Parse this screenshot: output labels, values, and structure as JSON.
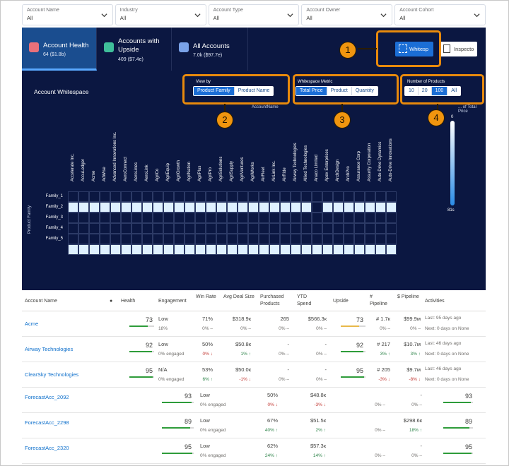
{
  "filters": [
    {
      "label": "Account Name",
      "value": "All"
    },
    {
      "label": "Industry",
      "value": "All"
    },
    {
      "label": "Account Type",
      "value": "All"
    },
    {
      "label": "Account Owner",
      "value": "All"
    },
    {
      "label": "Account Cohort",
      "value": "All"
    }
  ],
  "tabs": [
    {
      "title": "Account Health",
      "sub": "64 ($1.8b)",
      "icon": "health-icon",
      "color": "#e8707a"
    },
    {
      "title": "Accounts with Upside",
      "sub": "409 ($7.4e)",
      "icon": "upside-icon",
      "color": "#3fbf9a"
    },
    {
      "title": "All Accounts",
      "sub": "7.0k ($97.7e)",
      "icon": "accounts-icon",
      "color": "#7aa2e8"
    }
  ],
  "buttons": {
    "whitespace": "Whitesp",
    "inspector": "Inspecto"
  },
  "whitespace_title": "Account Whitespace",
  "view_by": {
    "label": "View by",
    "options": [
      "Product Family",
      "Product Name"
    ],
    "selected": 0
  },
  "metric": {
    "label": "Whitespace Metric",
    "options": [
      "Total Price",
      "Product",
      "Quantity"
    ],
    "selected": 0
  },
  "num_products": {
    "label": "Number of Products",
    "options": [
      "10",
      "20",
      "100",
      "All"
    ],
    "selected": 2
  },
  "axis_title": "AccountName",
  "legend": {
    "title": "... of Total Price",
    "min_label": "0",
    "max_label": "81s"
  },
  "y_axis_label": "Product Family",
  "callouts": [
    "1",
    "2",
    "3",
    "4"
  ],
  "chart_data": {
    "type": "heatmap",
    "columns": [
      "Accelerate Inc.",
      "AccuLedger",
      "Acme",
      "AdWise",
      "Advanced Innovations Inc.",
      "AeroConnect",
      "AeroLines",
      "AeroLink",
      "AgriCo",
      "AgriEquip",
      "AgriGrowth",
      "AgriNation",
      "AgriPlus",
      "AgriPro",
      "AgriSolutions",
      "AgriSupply",
      "AgriVentures",
      "AgriWorks",
      "AirFleet",
      "AirLink Inc.",
      "AirRide",
      "Airway Technologies",
      "Allied Technologies",
      "Anaco Limited",
      "Apex Enterprises",
      "ArchDesign",
      "ArchPro",
      "Assurance Corp",
      "Assurity Corporation",
      "Auto-Drive Dynamics",
      "Auto-Drive Innovations"
    ],
    "rows": [
      "Family_1",
      "Family_2",
      "Family_3",
      "Family_4",
      "Family_5",
      ""
    ],
    "filled": [
      [
        0,
        0,
        0,
        0,
        0,
        0,
        0,
        0,
        0,
        0,
        0,
        0,
        0,
        0,
        0,
        0,
        0,
        0,
        0,
        0,
        0,
        0,
        0,
        0,
        0,
        0,
        0,
        0,
        0,
        0,
        0
      ],
      [
        1,
        1,
        1,
        1,
        1,
        1,
        1,
        1,
        1,
        1,
        1,
        1,
        1,
        1,
        1,
        1,
        1,
        1,
        1,
        1,
        1,
        1,
        1,
        0,
        1,
        1,
        1,
        1,
        1,
        1,
        1
      ],
      [
        0,
        0,
        0,
        0,
        0,
        0,
        0,
        0,
        0,
        0,
        0,
        0,
        0,
        0,
        0,
        0,
        0,
        0,
        0,
        0,
        0,
        0,
        0,
        0,
        0,
        0,
        0,
        0,
        0,
        0,
        0
      ],
      [
        0,
        0,
        0,
        0,
        0,
        0,
        0,
        0,
        0,
        0,
        0,
        0,
        0,
        0,
        0,
        0,
        0,
        0,
        0,
        0,
        0,
        0,
        0,
        0,
        0,
        0,
        0,
        0,
        0,
        0,
        0
      ],
      [
        0,
        0,
        0,
        0,
        0,
        0,
        0,
        0,
        0,
        0,
        0,
        0,
        0,
        0,
        0,
        0,
        0,
        0,
        0,
        0,
        0,
        0,
        0,
        0,
        0,
        0,
        0,
        0,
        0,
        0,
        0
      ],
      [
        1,
        1,
        1,
        1,
        1,
        1,
        1,
        1,
        1,
        1,
        1,
        1,
        1,
        1,
        1,
        1,
        1,
        1,
        1,
        1,
        1,
        1,
        1,
        1,
        1,
        1,
        1,
        1,
        1,
        1,
        1
      ]
    ],
    "xlabel": "AccountName",
    "ylabel": "Product Family"
  },
  "table": {
    "headers": [
      "Account Name",
      "●",
      "Health",
      "Engagement",
      "Win Rate",
      "Avg Deal Size",
      "Purchased Products",
      "YTD Spend",
      "Upside",
      "# Pipeline",
      "$ Pipeline",
      "Activities"
    ],
    "rows": [
      {
        "name": "Acme",
        "health": "73",
        "health_pct": 0.73,
        "eng": "Low",
        "eng_sub": "18%",
        "win": "71%",
        "win_sub": "0% –",
        "deal": "$318.9к",
        "deal_sub": "0% –",
        "pp": "265",
        "pp_sub": "0% –",
        "ytd": "$566.3к",
        "ytd_sub": "0% –",
        "upside": "73",
        "upside_pct": 0.73,
        "upside_color": "#e8b84a",
        "npipe": "# 1.7к",
        "npipe_sub": "0% –",
        "spipe": "$99.9м",
        "spipe_sub": "0% –",
        "act1": "Last: 95 days ago",
        "act2": "Next: 0 days on None"
      },
      {
        "name": "Airway Technologies",
        "health": "92",
        "health_pct": 0.92,
        "eng": "Low",
        "eng_sub": "0% engaged",
        "win": "50%",
        "win_sub": "0% ↓",
        "deal": "$50.8к",
        "deal_sub": "1% ↑",
        "pp": "-",
        "pp_sub": "0% –",
        "ytd": "-",
        "ytd_sub": "0% –",
        "upside": "92",
        "upside_pct": 0.92,
        "upside_color": "#2e9c3a",
        "npipe": "# 217",
        "npipe_sub": "3% ↑",
        "spipe": "$10.7м",
        "spipe_sub": "3% ↑",
        "act1": "Last: 46 days ago",
        "act2": "Next: 0 days on None"
      },
      {
        "name": "ClearSky Technologies",
        "health": "95",
        "health_pct": 0.95,
        "eng": "N/A",
        "eng_sub": "0% engaged",
        "win": "53%",
        "win_sub": "6% ↑",
        "deal": "$50.0к",
        "deal_sub": "-1% ↓",
        "pp": "-",
        "pp_sub": "0% –",
        "ytd": "-",
        "ytd_sub": "0% –",
        "upside": "95",
        "upside_pct": 0.95,
        "upside_color": "#2e9c3a",
        "npipe": "# 205",
        "npipe_sub": "-3% ↓",
        "spipe": "$9.7м",
        "spipe_sub": "-8% ↓",
        "act1": "Last: 46 days ago",
        "act2": "Next: 0 days on None"
      }
    ],
    "rows2": [
      {
        "name": "ForecastAcc_2092",
        "health": "93",
        "health_pct": 0.93,
        "eng": "Low",
        "eng_sub": "0% engaged",
        "pp": "50%",
        "pp_sub": "0% ↓",
        "ytd": "$48.8к",
        "ytd_sub": "-3% ↓",
        "up_sub": "0% –",
        "spipe": "-",
        "spipe_sub": "0% –",
        "act": "93",
        "act_pct": 0.93
      },
      {
        "name": "ForecastAcc_2298",
        "health": "89",
        "health_pct": 0.89,
        "eng": "Low",
        "eng_sub": "0% engaged",
        "pp": "67%",
        "pp_sub": "40% ↑",
        "ytd": "$51.5к",
        "ytd_sub": "2% ↑",
        "up_sub": "0% –",
        "spipe": "$298.6к",
        "spipe_sub": "18% ↑",
        "act": "89",
        "act_pct": 0.89
      },
      {
        "name": "ForecastAcc_2320",
        "health": "95",
        "health_pct": 0.95,
        "eng": "Low",
        "eng_sub": "0% engaged",
        "pp": "62%",
        "pp_sub": "24% ↑",
        "ytd": "$57.3к",
        "ytd_sub": "14% ↑",
        "up_sub": "0% –",
        "spipe": "-",
        "spipe_sub": "0% –",
        "act": "95",
        "act_pct": 0.95
      }
    ]
  }
}
